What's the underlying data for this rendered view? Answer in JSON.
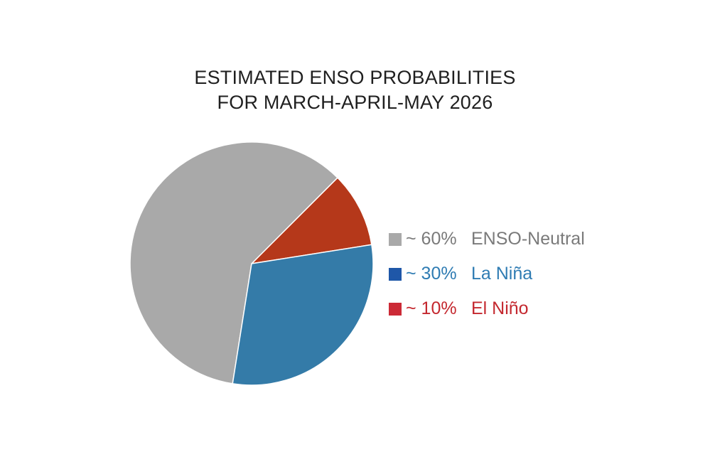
{
  "chart_data": {
    "type": "pie",
    "title_lines": [
      "ESTIMATED ENSO PROBABILITIES",
      "FOR MARCH-APRIL-MAY 2026"
    ],
    "slices": [
      {
        "label": "ENSO-Neutral",
        "value": 60,
        "value_text": "~ 60%",
        "color": "#a9a9a9",
        "text_color": "#7a7a7a",
        "legend_color": "#a9a9a9"
      },
      {
        "label": "La Niña",
        "value": 30,
        "value_text": "~ 30%",
        "color": "#347ba8",
        "text_color": "#2f7cb3",
        "legend_color": "#1f57a8"
      },
      {
        "label": "El Niño",
        "value": 10,
        "value_text": "~ 10%",
        "color": "#b5381a",
        "text_color": "#c4282f",
        "legend_color": "#cc2a36"
      }
    ],
    "legend_position": "right"
  }
}
